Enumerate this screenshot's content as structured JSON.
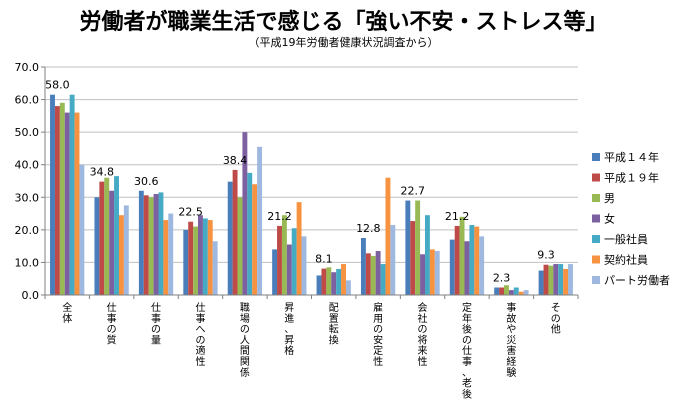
{
  "chart_data": {
    "type": "bar",
    "title": "労働者が職業生活で感じる「強い不安・ストレス等」",
    "subtitle": "（平成19年労働者健康状況調査から）",
    "categories": [
      "全体",
      "仕事の質",
      "仕事の量",
      "仕事への適性",
      "職場の人間関係",
      "昇進、昇格",
      "配置転換",
      "雇用の安定性",
      "会社の将来性",
      "定年後の仕事、老後",
      "事故や災害経験",
      "その他"
    ],
    "category_labels": [
      "全\n体",
      "仕\n事\nの\n質",
      "仕\n事\nの\n量",
      "仕\n事\nへ\nの\n適\n性",
      "職\n場\nの\n人\n間\n関\n係",
      "昇\n進\n、\n昇\n格",
      "配\n置\n転\n換",
      "雇\n用\nの\n安\n定\n性",
      "会\n社\nの\n将\n来\n性",
      "定\n年\n後\nの\n仕\n事\n、\n老\n後",
      "事\n故\nや\n災\n害\n経\n験",
      "そ\nの\n他"
    ],
    "series": [
      {
        "name": "平成１４年",
        "color": "#4a7ebb",
        "values": [
          61.5,
          30.0,
          32.0,
          20.0,
          34.8,
          14.0,
          6.0,
          17.5,
          29.0,
          17.0,
          2.3,
          7.5
        ]
      },
      {
        "name": "平成１９年",
        "color": "#be4b48",
        "values": [
          58.0,
          34.8,
          30.6,
          22.5,
          38.4,
          21.2,
          8.1,
          12.8,
          22.7,
          21.2,
          2.3,
          9.3
        ]
      },
      {
        "name": "男",
        "color": "#98b954",
        "values": [
          59.0,
          36.0,
          30.0,
          21.0,
          30.0,
          24.5,
          8.5,
          12.0,
          29.0,
          24.0,
          3.0,
          9.0
        ]
      },
      {
        "name": "女",
        "color": "#7d60a0",
        "values": [
          56.0,
          32.0,
          31.0,
          24.5,
          50.0,
          15.5,
          7.0,
          13.5,
          12.5,
          16.5,
          1.5,
          9.5
        ]
      },
      {
        "name": "一般社員",
        "color": "#46aac5",
        "values": [
          61.5,
          36.5,
          31.5,
          23.5,
          37.5,
          20.5,
          8.0,
          9.5,
          24.5,
          21.5,
          2.3,
          9.5
        ]
      },
      {
        "name": "契約社員",
        "color": "#f69240",
        "values": [
          56.0,
          24.5,
          23.0,
          23.0,
          34.0,
          28.5,
          9.5,
          36.0,
          14.0,
          21.0,
          1.0,
          8.0
        ]
      },
      {
        "name": "パート労働者",
        "color": "#9fb8e0",
        "values": [
          40.0,
          27.5,
          25.0,
          16.5,
          45.5,
          18.0,
          4.5,
          21.5,
          13.5,
          18.0,
          1.5,
          9.5
        ]
      }
    ],
    "data_labels": [
      "58.0",
      "34.8",
      "30.6",
      "22.5",
      "38.4",
      "21.2",
      "8.1",
      "12.8",
      "22.7",
      "21.2",
      "2.3",
      "9.3"
    ],
    "yticks": [
      "0.0",
      "10.0",
      "20.0",
      "30.0",
      "40.0",
      "50.0",
      "60.0",
      "70.0"
    ],
    "ylim": [
      0,
      70
    ],
    "grid": true,
    "legend_position": "right"
  }
}
